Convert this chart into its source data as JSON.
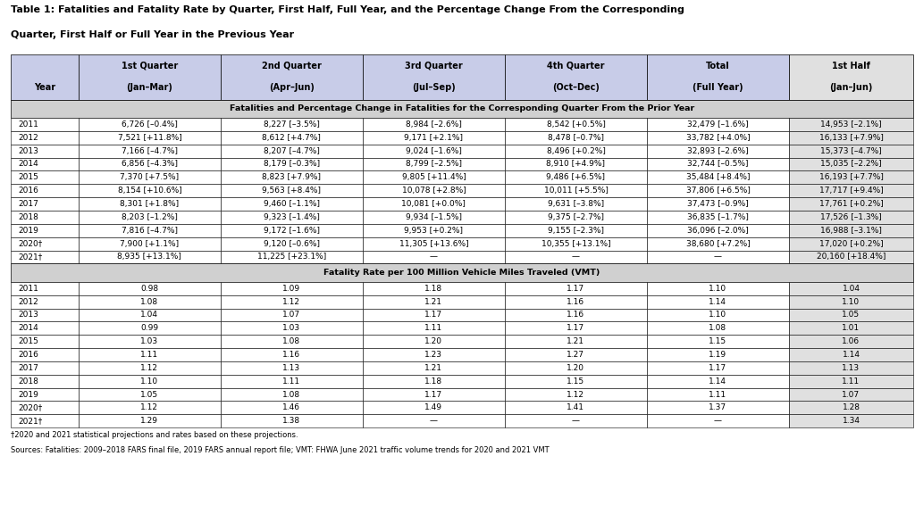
{
  "title_line1": "Table 1: Fatalities and Fatality Rate by Quarter, First Half, Full Year, and the Percentage Change From the Corresponding",
  "title_line2": "Quarter, First Half or Full Year in the Previous Year",
  "col_headers_line1": [
    "",
    "1st Quarter",
    "2nd Quarter",
    "3rd Quarter",
    "4th Quarter",
    "Total",
    "1st Half"
  ],
  "col_headers_line2": [
    "Year",
    "(Jan–Mar)",
    "(Apr–Jun)",
    "(Jul–Sep)",
    "(Oct–Dec)",
    "(Full Year)",
    "(Jan–Jun)"
  ],
  "section1_title": "Fatalities and Percentage Change in Fatalities for the Corresponding Quarter From the Prior Year",
  "fatalities_rows": [
    [
      "2011",
      "6,726 [–0.4%]",
      "8,227 [–3.5%]",
      "8,984 [–2.6%]",
      "8,542 [+0.5%]",
      "32,479 [–1.6%]",
      "14,953 [–2.1%]"
    ],
    [
      "2012",
      "7,521 [+11.8%]",
      "8,612 [+4.7%]",
      "9,171 [+2.1%]",
      "8,478 [–0.7%]",
      "33,782 [+4.0%]",
      "16,133 [+7.9%]"
    ],
    [
      "2013",
      "7,166 [–4.7%]",
      "8,207 [–4.7%]",
      "9,024 [–1.6%]",
      "8,496 [+0.2%]",
      "32,893 [–2.6%]",
      "15,373 [–4.7%]"
    ],
    [
      "2014",
      "6,856 [–4.3%]",
      "8,179 [–0.3%]",
      "8,799 [–2.5%]",
      "8,910 [+4.9%]",
      "32,744 [–0.5%]",
      "15,035 [–2.2%]"
    ],
    [
      "2015",
      "7,370 [+7.5%]",
      "8,823 [+7.9%]",
      "9,805 [+11.4%]",
      "9,486 [+6.5%]",
      "35,484 [+8.4%]",
      "16,193 [+7.7%]"
    ],
    [
      "2016",
      "8,154 [+10.6%]",
      "9,563 [+8.4%]",
      "10,078 [+2.8%]",
      "10,011 [+5.5%]",
      "37,806 [+6.5%]",
      "17,717 [+9.4%]"
    ],
    [
      "2017",
      "8,301 [+1.8%]",
      "9,460 [–1.1%]",
      "10,081 [+0.0%]",
      "9,631 [–3.8%]",
      "37,473 [–0.9%]",
      "17,761 [+0.2%]"
    ],
    [
      "2018",
      "8,203 [–1.2%]",
      "9,323 [–1.4%]",
      "9,934 [–1.5%]",
      "9,375 [–2.7%]",
      "36,835 [–1.7%]",
      "17,526 [–1.3%]"
    ],
    [
      "2019",
      "7,816 [–4.7%]",
      "9,172 [–1.6%]",
      "9,953 [+0.2%]",
      "9,155 [–2.3%]",
      "36,096 [–2.0%]",
      "16,988 [–3.1%]"
    ],
    [
      "2020†",
      "7,900 [+1.1%]",
      "9,120 [–0.6%]",
      "11,305 [+13.6%]",
      "10,355 [+13.1%]",
      "38,680 [+7.2%]",
      "17,020 [+0.2%]"
    ],
    [
      "2021†",
      "8,935 [+13.1%]",
      "11,225 [+23.1%]",
      "—",
      "—",
      "—",
      "20,160 [+18.4%]"
    ]
  ],
  "section2_title": "Fatality Rate per 100 Million Vehicle Miles Traveled (VMT)",
  "rate_rows": [
    [
      "2011",
      "0.98",
      "1.09",
      "1.18",
      "1.17",
      "1.10",
      "1.04"
    ],
    [
      "2012",
      "1.08",
      "1.12",
      "1.21",
      "1.16",
      "1.14",
      "1.10"
    ],
    [
      "2013",
      "1.04",
      "1.07",
      "1.17",
      "1.16",
      "1.10",
      "1.05"
    ],
    [
      "2014",
      "0.99",
      "1.03",
      "1.11",
      "1.17",
      "1.08",
      "1.01"
    ],
    [
      "2015",
      "1.03",
      "1.08",
      "1.20",
      "1.21",
      "1.15",
      "1.06"
    ],
    [
      "2016",
      "1.11",
      "1.16",
      "1.23",
      "1.27",
      "1.19",
      "1.14"
    ],
    [
      "2017",
      "1.12",
      "1.13",
      "1.21",
      "1.20",
      "1.17",
      "1.13"
    ],
    [
      "2018",
      "1.10",
      "1.11",
      "1.18",
      "1.15",
      "1.14",
      "1.11"
    ],
    [
      "2019",
      "1.05",
      "1.08",
      "1.17",
      "1.12",
      "1.11",
      "1.07"
    ],
    [
      "2020†",
      "1.12",
      "1.46",
      "1.49",
      "1.41",
      "1.37",
      "1.28"
    ],
    [
      "2021†",
      "1.29",
      "1.38",
      "—",
      "—",
      "—",
      "1.34"
    ]
  ],
  "footnote1": "†2020 and 2021 statistical projections and rates based on these projections.",
  "footnote2": "Sources: Fatalities: 2009–2018 FARS final file, 2019 FARS annual report file; VMT: FHWA June 2021 traffic volume trends for 2020 and 2021 VMT",
  "header_bg": "#c8cce8",
  "section_title_bg": "#d0d0d0",
  "last_col_bg": "#e0e0e0",
  "row_bg": "#ffffff",
  "border_color": "#000000",
  "text_color": "#000000"
}
